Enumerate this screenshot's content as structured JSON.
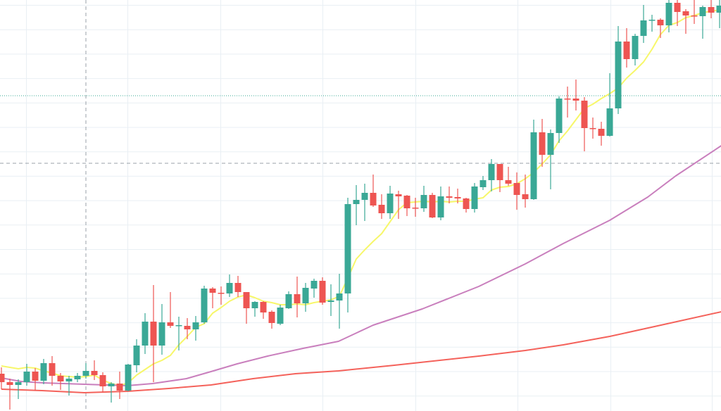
{
  "chart_data": {
    "type": "candlestick",
    "title": "",
    "xlabel": "",
    "ylabel": "",
    "ylim": [
      0,
      58.4
    ],
    "grid": true,
    "colors": {
      "up": "#3aa896",
      "down": "#ee5552",
      "grid": "#e9eff4",
      "crosshair": "#9aa0a8",
      "price_line": "#3aa896"
    },
    "crosshair": {
      "index": 10,
      "price": 35.2
    },
    "price_line": 44.8,
    "candles": [
      [
        5.3,
        6.2,
        3.1,
        4.1
      ],
      [
        4.1,
        4.6,
        0.2,
        3.7
      ],
      [
        3.7,
        4.5,
        1.7,
        4.1
      ],
      [
        4.1,
        6.7,
        3.6,
        5.6
      ],
      [
        5.6,
        6.1,
        2.9,
        4.3
      ],
      [
        4.3,
        7.4,
        3.8,
        6.8
      ],
      [
        6.8,
        7.8,
        3.6,
        5.0
      ],
      [
        5.0,
        5.4,
        3.0,
        4.2
      ],
      [
        4.2,
        5.0,
        2.2,
        4.6
      ],
      [
        4.5,
        5.4,
        4.1,
        5.0
      ],
      [
        5.0,
        6.8,
        4.6,
        5.7
      ],
      [
        5.7,
        7.2,
        4.4,
        5.1
      ],
      [
        5.1,
        5.5,
        2.6,
        3.5
      ],
      [
        3.5,
        4.1,
        1.2,
        3.9
      ],
      [
        3.9,
        5.6,
        1.7,
        2.9
      ],
      [
        2.9,
        6.7,
        2.8,
        6.6
      ],
      [
        6.5,
        10.2,
        5.5,
        9.3
      ],
      [
        9.3,
        13.9,
        8.1,
        12.7
      ],
      [
        12.7,
        17.9,
        4.1,
        9.3
      ],
      [
        9.3,
        15.2,
        8.0,
        12.6
      ],
      [
        12.6,
        16.9,
        11.8,
        12.1
      ],
      [
        12.1,
        13.4,
        8.6,
        12.2
      ],
      [
        12.1,
        13.2,
        10.2,
        11.6
      ],
      [
        11.6,
        13.5,
        10.0,
        12.6
      ],
      [
        12.6,
        17.8,
        12.4,
        17.4
      ],
      [
        17.4,
        17.6,
        14.6,
        16.8
      ],
      [
        16.8,
        17.7,
        15.1,
        16.7
      ],
      [
        16.7,
        19.4,
        16.2,
        18.2
      ],
      [
        18.2,
        19.2,
        16.2,
        16.9
      ],
      [
        16.9,
        16.9,
        12.4,
        14.6
      ],
      [
        14.6,
        15.6,
        13.4,
        15.5
      ],
      [
        15.5,
        15.6,
        13.1,
        14.0
      ],
      [
        14.1,
        14.3,
        11.7,
        12.5
      ],
      [
        12.4,
        15.1,
        12.2,
        14.7
      ],
      [
        14.6,
        17.0,
        14.5,
        16.6
      ],
      [
        16.6,
        19.1,
        13.3,
        15.3
      ],
      [
        15.3,
        18.2,
        14.1,
        17.5
      ],
      [
        17.4,
        18.8,
        16.1,
        18.5
      ],
      [
        18.5,
        19.0,
        15.1,
        15.4
      ],
      [
        15.5,
        18.0,
        13.5,
        15.7
      ],
      [
        15.7,
        19.5,
        11.7,
        16.7
      ],
      [
        16.7,
        30.3,
        14.0,
        29.4
      ],
      [
        29.4,
        32.1,
        26.4,
        30.0
      ],
      [
        30.0,
        32.3,
        27.0,
        31.0
      ],
      [
        31.0,
        33.6,
        29.0,
        29.2
      ],
      [
        29.3,
        30.8,
        27.3,
        28.1
      ],
      [
        28.1,
        32.0,
        27.3,
        30.9
      ],
      [
        30.8,
        31.3,
        27.3,
        30.5
      ],
      [
        30.6,
        30.7,
        27.7,
        28.8
      ],
      [
        28.9,
        30.3,
        27.6,
        28.8
      ],
      [
        28.8,
        32.0,
        28.3,
        30.7
      ],
      [
        30.7,
        31.0,
        27.4,
        27.5
      ],
      [
        27.5,
        31.9,
        27.1,
        30.5
      ],
      [
        30.5,
        31.9,
        29.5,
        30.3
      ],
      [
        30.4,
        31.6,
        29.5,
        30.2
      ],
      [
        30.2,
        30.3,
        28.2,
        28.7
      ],
      [
        28.7,
        32.4,
        28.2,
        31.9
      ],
      [
        31.8,
        33.4,
        31.4,
        32.8
      ],
      [
        32.8,
        35.8,
        31.2,
        35.1
      ],
      [
        35.1,
        35.1,
        31.1,
        32.8
      ],
      [
        32.8,
        34.7,
        32.0,
        32.3
      ],
      [
        32.4,
        33.9,
        28.6,
        30.7
      ],
      [
        30.8,
        33.6,
        28.9,
        30.1
      ],
      [
        30.1,
        41.4,
        30.0,
        39.6
      ],
      [
        39.6,
        41.5,
        34.7,
        36.4
      ],
      [
        36.4,
        40.0,
        31.5,
        39.5
      ],
      [
        39.5,
        44.7,
        38.1,
        44.4
      ],
      [
        44.4,
        46.1,
        41.7,
        44.3
      ],
      [
        44.4,
        47.1,
        42.7,
        44.1
      ],
      [
        44.1,
        44.6,
        36.9,
        40.2
      ],
      [
        40.2,
        41.7,
        38.7,
        40.1
      ],
      [
        40.1,
        41.1,
        37.7,
        39.1
      ],
      [
        39.1,
        48.0,
        39.0,
        43.0
      ],
      [
        43.0,
        54.7,
        42.2,
        52.5
      ],
      [
        52.5,
        54.4,
        48.8,
        50.0
      ],
      [
        50.0,
        53.6,
        49.1,
        53.3
      ],
      [
        53.3,
        57.7,
        52.3,
        55.5
      ],
      [
        55.5,
        56.3,
        53.9,
        55.6
      ],
      [
        55.6,
        55.8,
        53.0,
        54.8
      ],
      [
        54.8,
        58.6,
        53.8,
        58.0
      ],
      [
        58.0,
        58.6,
        54.7,
        56.7
      ],
      [
        56.8,
        57.1,
        53.6,
        56.2
      ],
      [
        56.2,
        58.6,
        55.0,
        56.1
      ],
      [
        56.1,
        57.6,
        52.9,
        57.4
      ],
      [
        57.4,
        58.6,
        55.8,
        56.6
      ],
      [
        56.6,
        58.4,
        54.4,
        57.6
      ]
    ],
    "moving_averages": [
      {
        "color": "#f7f76a",
        "values": [
          6.4,
          6.2,
          6.0,
          6.2,
          6.1,
          5.7,
          5.4,
          5.0,
          4.9,
          4.8,
          4.9,
          5.1,
          4.4,
          3.9,
          3.6,
          4.0,
          5.1,
          5.9,
          6.7,
          7.2,
          7.9,
          9.4,
          10.6,
          11.9,
          12.4,
          13.9,
          14.7,
          15.6,
          16.2,
          16.5,
          16.1,
          15.6,
          15.4,
          15.1,
          15.1,
          15.2,
          15.1,
          15.4,
          15.6,
          15.8,
          16.3,
          18.9,
          21.6,
          22.9,
          24.1,
          25.2,
          26.9,
          28.6,
          29.6,
          29.7,
          29.8,
          29.7,
          29.8,
          29.7,
          29.8,
          29.8,
          30.1,
          30.3,
          31.4,
          31.8,
          31.9,
          32.3,
          33.0,
          33.9,
          35.1,
          36.4,
          38.4,
          39.8,
          41.4,
          43.0,
          43.6,
          44.4,
          45.1,
          45.9,
          47.3,
          48.4,
          49.6,
          51.4,
          53.5,
          54.8,
          55.2,
          55.9,
          56.2,
          56.6,
          56.8,
          57.0
        ]
      },
      {
        "color": "#c97fbd",
        "points": [
          [
            0,
            4.7
          ],
          [
            2.3,
            4.2
          ],
          [
            4.9,
            4.0
          ],
          [
            9.8,
            3.8
          ],
          [
            14.9,
            3.6
          ],
          [
            17.9,
            3.9
          ],
          [
            21.9,
            4.6
          ],
          [
            24.8,
            5.6
          ],
          [
            27.9,
            6.7
          ],
          [
            31.5,
            7.8
          ],
          [
            35.7,
            8.9
          ],
          [
            39.9,
            9.9
          ],
          [
            44,
            12.2
          ],
          [
            49.8,
            14.5
          ],
          [
            56.5,
            17.7
          ],
          [
            62,
            20.9
          ],
          [
            66.5,
            23.8
          ],
          [
            72,
            27.1
          ],
          [
            76.5,
            30.4
          ],
          [
            79.8,
            33.4
          ],
          [
            85.2,
            37.7
          ]
        ]
      },
      {
        "color": "#f4625b",
        "points": [
          [
            0,
            3.1
          ],
          [
            4.8,
            2.9
          ],
          [
            9.8,
            2.6
          ],
          [
            14.9,
            2.8
          ],
          [
            19.8,
            3.2
          ],
          [
            24.8,
            3.7
          ],
          [
            29.8,
            4.6
          ],
          [
            34.8,
            5.3
          ],
          [
            39.9,
            5.7
          ],
          [
            46.5,
            6.5
          ],
          [
            56.5,
            7.8
          ],
          [
            62,
            8.6
          ],
          [
            66.5,
            9.4
          ],
          [
            72,
            10.6
          ],
          [
            77.3,
            12.0
          ],
          [
            85.2,
            14.1
          ]
        ]
      }
    ]
  }
}
